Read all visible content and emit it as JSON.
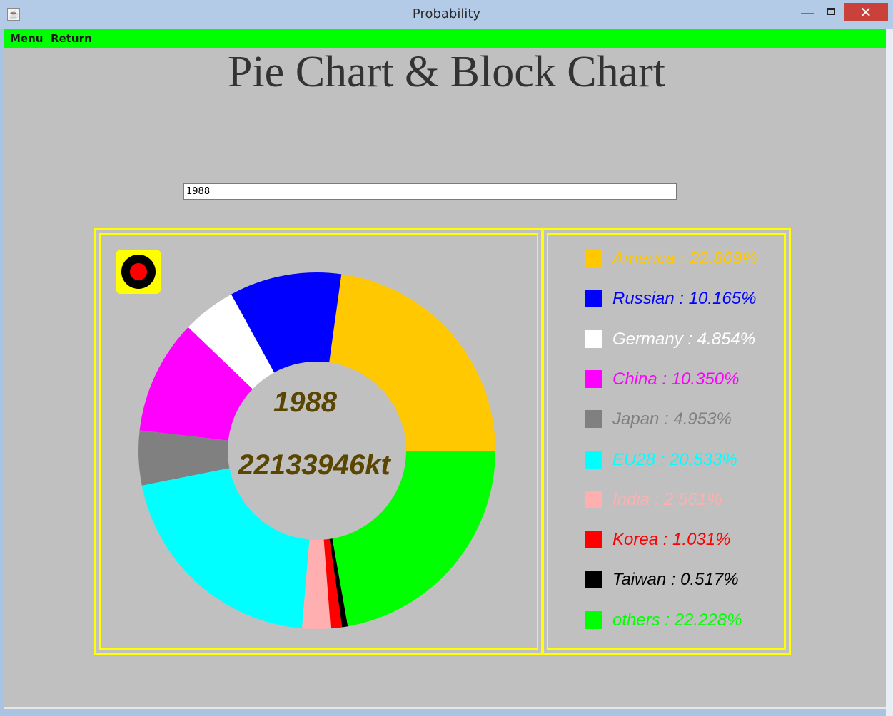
{
  "window": {
    "title": "Probability",
    "icon": "java-coffee-icon",
    "controls": {
      "minimize": "—",
      "maximize_icon": "maximize-icon",
      "close": "✕"
    }
  },
  "menubar": {
    "items": [
      "Menu",
      "Return"
    ],
    "background": "#00ff00"
  },
  "page": {
    "title": "Pie Chart & Block Chart"
  },
  "search": {
    "value": "1988"
  },
  "record_icon": {
    "name": "record-icon",
    "background": "#ffff00",
    "ring": "#000000",
    "dot": "#ff0000"
  },
  "center": {
    "year": "1988",
    "total": "22133946kt"
  },
  "legend": [
    {
      "label": "America : 22.809%",
      "color": "#ffc800"
    },
    {
      "label": "Russian : 10.165%",
      "color": "#0000ff"
    },
    {
      "label": "Germany : 4.854%",
      "color": "#ffffff"
    },
    {
      "label": "China : 10.350%",
      "color": "#ff00ff"
    },
    {
      "label": "Japan : 4.953%",
      "color": "#808080"
    },
    {
      "label": "EU28 : 20.533%",
      "color": "#00ffff"
    },
    {
      "label": "India : 2.561%",
      "color": "#ffafaf"
    },
    {
      "label": "Korea : 1.031%",
      "color": "#ff0000"
    },
    {
      "label": "Taiwan : 0.517%",
      "color": "#000000"
    },
    {
      "label": "others : 22.228%",
      "color": "#00ff00"
    }
  ],
  "chart_data": {
    "type": "pie",
    "style": "donut",
    "categories": [
      "America",
      "Russian",
      "Germany",
      "China",
      "Japan",
      "EU28",
      "India",
      "Korea",
      "Taiwan",
      "others"
    ],
    "values": [
      22.809,
      10.165,
      4.854,
      10.35,
      4.953,
      20.533,
      2.561,
      1.031,
      0.517,
      22.228
    ],
    "colors": [
      "#ffc800",
      "#0000ff",
      "#ffffff",
      "#ff00ff",
      "#808080",
      "#00ffff",
      "#ffafaf",
      "#ff0000",
      "#000000",
      "#00ff00"
    ],
    "start": "3 o'clock",
    "direction": "counterclockwise",
    "center_labels": [
      "1988",
      "22133946kt"
    ],
    "panel_border_color": "#ffff00",
    "center_text_color": "#5a4600"
  }
}
